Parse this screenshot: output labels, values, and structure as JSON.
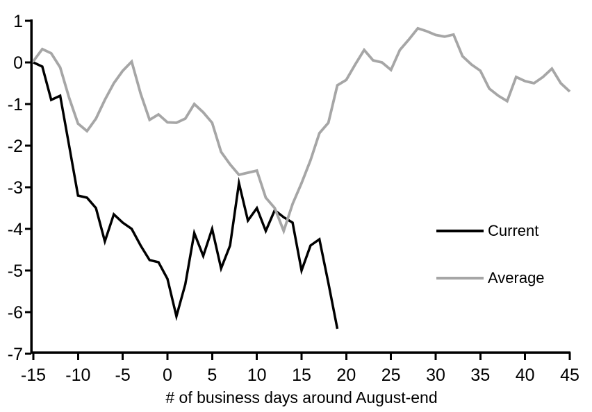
{
  "chart_data": {
    "type": "line",
    "title": "",
    "xlabel": "# of business days around August-end",
    "ylabel": "",
    "xlim": [
      -15,
      45
    ],
    "ylim": [
      -7,
      1
    ],
    "x_ticks": [
      -15,
      -10,
      -5,
      0,
      5,
      10,
      15,
      20,
      25,
      30,
      35,
      40,
      45
    ],
    "y_ticks": [
      1,
      0,
      -1,
      -2,
      -3,
      -4,
      -5,
      -6,
      -7
    ],
    "grid": false,
    "background": "#ffffff",
    "axis_color": "#000000",
    "legend_position": "right-middle",
    "series": [
      {
        "name": "Current",
        "color": "#000000",
        "stroke_width": 3.5,
        "points": [
          [
            -15,
            0.0
          ],
          [
            -14,
            -0.1
          ],
          [
            -13,
            -0.9
          ],
          [
            -12,
            -0.8
          ],
          [
            -11,
            -2.0
          ],
          [
            -10,
            -3.2
          ],
          [
            -9,
            -3.25
          ],
          [
            -8,
            -3.5
          ],
          [
            -7,
            -4.3
          ],
          [
            -6,
            -3.65
          ],
          [
            -5,
            -3.85
          ],
          [
            -4,
            -4.0
          ],
          [
            -3,
            -4.4
          ],
          [
            -2,
            -4.75
          ],
          [
            -1,
            -4.8
          ],
          [
            0,
            -5.2
          ],
          [
            1,
            -6.1
          ],
          [
            2,
            -5.33
          ],
          [
            3,
            -4.1
          ],
          [
            4,
            -4.65
          ],
          [
            5,
            -4.0
          ],
          [
            6,
            -4.95
          ],
          [
            7,
            -4.4
          ],
          [
            8,
            -2.9
          ],
          [
            9,
            -3.8
          ],
          [
            10,
            -3.5
          ],
          [
            11,
            -4.05
          ],
          [
            12,
            -3.55
          ],
          [
            13,
            -3.72
          ],
          [
            14,
            -3.85
          ],
          [
            15,
            -5.0
          ],
          [
            16,
            -4.4
          ],
          [
            17,
            -4.25
          ],
          [
            18,
            -5.3
          ],
          [
            19,
            -6.4
          ]
        ]
      },
      {
        "name": "Average",
        "color": "#a6a6a6",
        "stroke_width": 3.8,
        "points": [
          [
            -15,
            0.03
          ],
          [
            -14,
            0.32
          ],
          [
            -13,
            0.22
          ],
          [
            -12,
            -0.12
          ],
          [
            -11,
            -0.85
          ],
          [
            -10,
            -1.47
          ],
          [
            -9,
            -1.65
          ],
          [
            -8,
            -1.35
          ],
          [
            -7,
            -0.9
          ],
          [
            -6,
            -0.5
          ],
          [
            -5,
            -0.2
          ],
          [
            -4,
            0.02
          ],
          [
            -3,
            -0.75
          ],
          [
            -2,
            -1.38
          ],
          [
            -1,
            -1.25
          ],
          [
            0,
            -1.44
          ],
          [
            1,
            -1.45
          ],
          [
            2,
            -1.35
          ],
          [
            3,
            -1.0
          ],
          [
            4,
            -1.2
          ],
          [
            5,
            -1.45
          ],
          [
            6,
            -2.15
          ],
          [
            7,
            -2.45
          ],
          [
            8,
            -2.7
          ],
          [
            9,
            -2.65
          ],
          [
            10,
            -2.6
          ],
          [
            11,
            -3.25
          ],
          [
            12,
            -3.5
          ],
          [
            13,
            -4.05
          ],
          [
            14,
            -3.4
          ],
          [
            15,
            -2.9
          ],
          [
            16,
            -2.35
          ],
          [
            17,
            -1.7
          ],
          [
            18,
            -1.45
          ],
          [
            19,
            -0.55
          ],
          [
            20,
            -0.42
          ],
          [
            21,
            -0.05
          ],
          [
            22,
            0.3
          ],
          [
            23,
            0.05
          ],
          [
            24,
            0.0
          ],
          [
            25,
            -0.18
          ],
          [
            26,
            0.3
          ],
          [
            27,
            0.55
          ],
          [
            28,
            0.82
          ],
          [
            29,
            0.75
          ],
          [
            30,
            0.66
          ],
          [
            31,
            0.62
          ],
          [
            32,
            0.67
          ],
          [
            33,
            0.15
          ],
          [
            34,
            -0.05
          ],
          [
            35,
            -0.2
          ],
          [
            36,
            -0.63
          ],
          [
            37,
            -0.8
          ],
          [
            38,
            -0.93
          ],
          [
            39,
            -0.35
          ],
          [
            40,
            -0.45
          ],
          [
            41,
            -0.5
          ],
          [
            42,
            -0.35
          ],
          [
            43,
            -0.15
          ],
          [
            44,
            -0.5
          ],
          [
            45,
            -0.7
          ]
        ]
      }
    ]
  }
}
